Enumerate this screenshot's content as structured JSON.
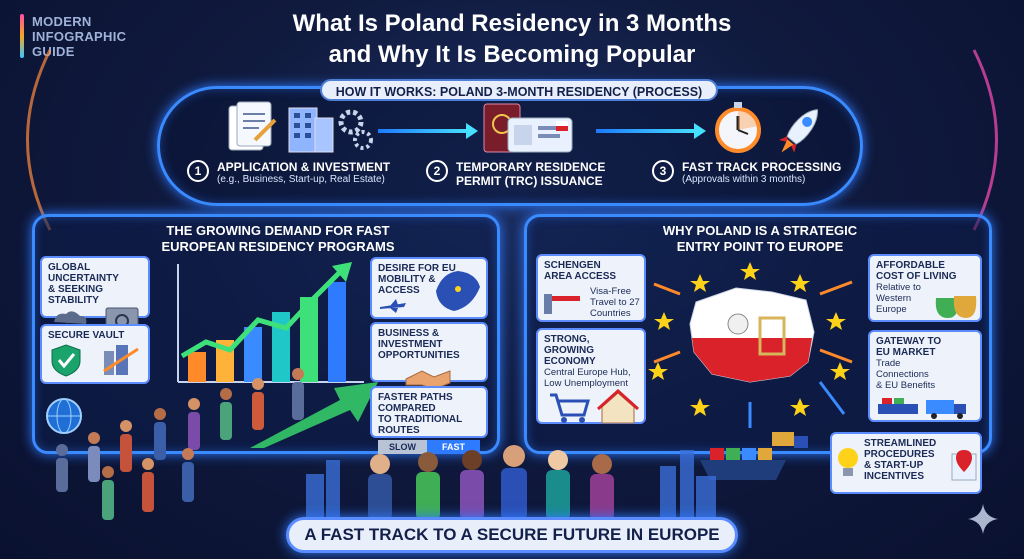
{
  "brand": {
    "line1": "MODERN",
    "line2": "INFOGRAPHIC",
    "line3": "GUIDE"
  },
  "title": {
    "line1": "What Is Poland Residency in 3 Months",
    "line2": "and Why It Is Becoming Popular"
  },
  "process": {
    "heading": "HOW IT WORKS: POLAND 3-MONTH RESIDENCY (PROCESS)",
    "steps": [
      {
        "num": "1",
        "title": "APPLICATION & INVESTMENT",
        "sub": "(e.g., Business, Start-up, Real Estate)",
        "icon": "document-icon"
      },
      {
        "num": "2",
        "title_line1": "TEMPORARY RESIDENCE",
        "title_line2": "PERMIT (TRC) ISSUANCE",
        "icon": "passport-icon"
      },
      {
        "num": "3",
        "title": "FAST TRACK PROCESSING",
        "sub": "(Approvals within 3 months)",
        "icon": "stopwatch-icon"
      }
    ]
  },
  "left": {
    "heading_line1": "THE GROWING DEMAND FOR FAST",
    "heading_line2": "EUROPEAN RESIDENCY PROGRAMS",
    "cards": {
      "uncertainty": {
        "line1": "GLOBAL UNCERTAINTY",
        "line2": "& SEEKING STABILITY"
      },
      "vault": {
        "title": "SECURE VAULT"
      },
      "mobility": {
        "line1": "DESIRE FOR EU",
        "line2": "MOBILITY &",
        "line3": "ACCESS"
      },
      "business": {
        "line1": "BUSINESS & INVESTMENT",
        "line2": "OPPORTUNITIES"
      },
      "paths": {
        "line1": "FASTER PATHS COMPARED",
        "line2": "TO TRADITIONAL ROUTES",
        "slow": "SLOW",
        "fast": "FAST"
      }
    }
  },
  "right": {
    "heading_line1": "WHY POLAND IS A STRATEGIC",
    "heading_line2": "ENTRY POINT TO EUROPE",
    "cards": {
      "schengen": {
        "line1": "SCHENGEN",
        "line2": "AREA ACCESS",
        "sub1": "Visa-Free",
        "sub2": "Travel to 27",
        "sub3": "Countries"
      },
      "economy": {
        "line1": "STRONG, GROWING",
        "line2": "ECONOMY",
        "sub1": "Central Europe Hub,",
        "sub2": "Low Unemployment"
      },
      "cost": {
        "line1": "AFFORDABLE",
        "line2": "COST OF LIVING",
        "sub1": "Relative to",
        "sub2": "Western",
        "sub3": "Europe"
      },
      "gateway": {
        "line1": "GATEWAY TO",
        "line2": "EU MARKET",
        "sub1": "Trade",
        "sub2": "Connections",
        "sub3": "& EU Benefits"
      },
      "procedures": {
        "line1": "STREAMLINED",
        "line2": "PROCEDURES",
        "line3": "& START-UP",
        "line4": "INCENTIVES"
      }
    }
  },
  "footer": "A FAST TRACK TO A SECURE FUTURE IN EUROPE",
  "colors": {
    "accent": "#3a8bff",
    "cyan": "#46e0ff",
    "poland_red": "#d9222a",
    "eu_star": "#ffd21a",
    "orange_arrow": "#ff8a2a"
  },
  "chart": {
    "bars": [
      0.3,
      0.42,
      0.55,
      0.7,
      0.85,
      1.0
    ]
  }
}
